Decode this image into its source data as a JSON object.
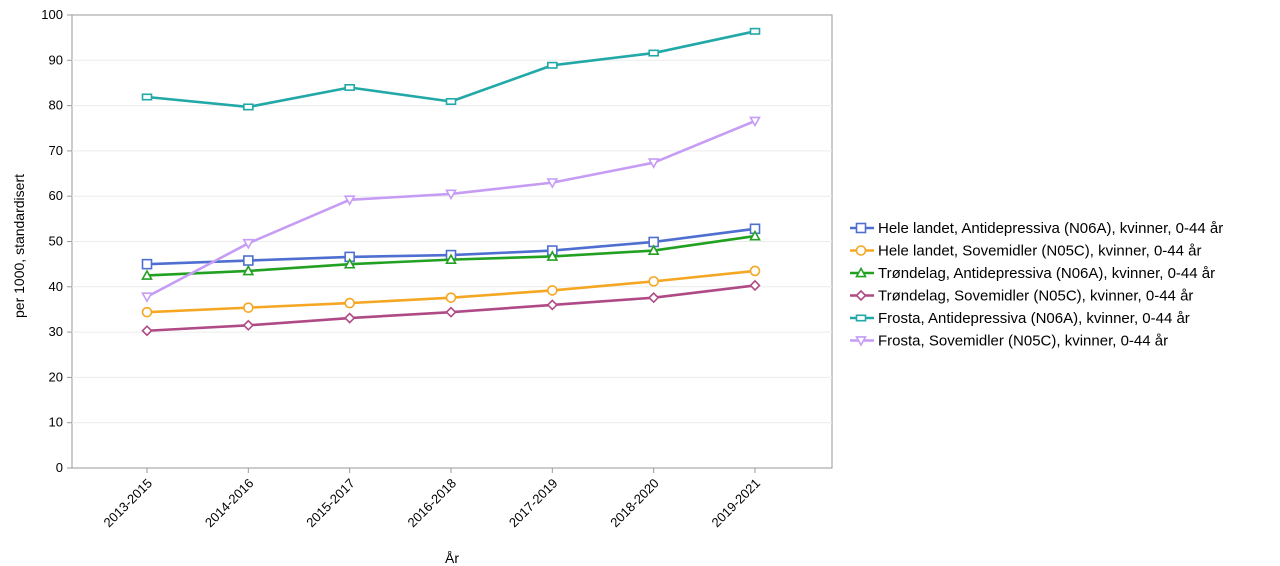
{
  "chart_data": {
    "type": "line",
    "title": "",
    "xlabel": "År",
    "ylabel": "per 1000, standardisert",
    "ylim": [
      0,
      100
    ],
    "yticks": [
      0,
      10,
      20,
      30,
      40,
      50,
      60,
      70,
      80,
      90,
      100
    ],
    "grid": true,
    "legend_position": "right",
    "categories": [
      "2013-2015",
      "2014-2016",
      "2015-2017",
      "2016-2018",
      "2017-2019",
      "2018-2020",
      "2019-2021"
    ],
    "series": [
      {
        "name": "Hele landet, Antidepressiva (N06A), kvinner, 0-44 år",
        "color": "#4f6fd0",
        "marker": "square",
        "values": [
          45.0,
          45.8,
          46.6,
          47.0,
          48.0,
          49.9,
          52.8
        ]
      },
      {
        "name": "Hele landet, Sovemidler (N05C), kvinner, 0-44 år",
        "color": "#f5a623",
        "marker": "circle",
        "values": [
          34.4,
          35.4,
          36.4,
          37.6,
          39.2,
          41.2,
          43.5
        ]
      },
      {
        "name": "Trøndelag, Antidepressiva (N06A), kvinner, 0-44 år",
        "color": "#22a022",
        "marker": "triangle-up",
        "values": [
          42.5,
          43.5,
          45.0,
          46.0,
          46.7,
          48.0,
          51.2
        ]
      },
      {
        "name": "Trøndelag, Sovemidler (N05C), kvinner, 0-44 år",
        "color": "#b04a86",
        "marker": "diamond",
        "values": [
          30.3,
          31.5,
          33.1,
          34.4,
          36.0,
          37.6,
          40.3
        ]
      },
      {
        "name": "Frosta, Antidepressiva (N06A), kvinner, 0-44 år",
        "color": "#23a8a8",
        "marker": "rect",
        "values": [
          81.9,
          79.7,
          84.0,
          80.9,
          88.9,
          91.6,
          96.4
        ]
      },
      {
        "name": "Frosta, Sovemidler (N05C), kvinner, 0-44 år",
        "color": "#c69cf5",
        "marker": "triangle-down",
        "values": [
          37.8,
          49.6,
          59.2,
          60.5,
          63.0,
          67.4,
          76.6
        ]
      }
    ]
  }
}
